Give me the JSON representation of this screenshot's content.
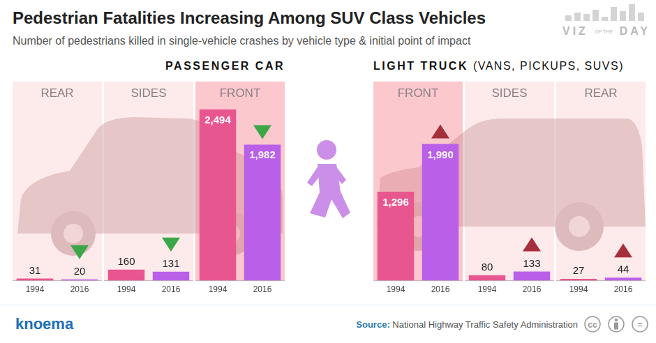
{
  "title": "Pedestrian Fatalities Increasing Among SUV Class Vehicles",
  "subtitle": "Number of pedestrians killed in single-vehicle crashes by vehicle type & initial point of impact",
  "logo": [
    "VIZ",
    "OF THE",
    "DAY"
  ],
  "brand": "knoema",
  "source_label": "Source:",
  "source": "National Highway Traffic Safety Administration",
  "license_icons": [
    "cc",
    "="
  ],
  "chart_data": [
    {
      "type": "bar",
      "group": "PASSENGER CAR",
      "title": "REAR",
      "categories": [
        "1994",
        "2016"
      ],
      "values": [
        31,
        20
      ],
      "value_labels": [
        "31",
        "20"
      ],
      "colors": [
        "#e8568f",
        "#b95fe8"
      ],
      "ylim": [
        0,
        2900
      ],
      "grid": false,
      "tick_labels": "x",
      "data_labels": true,
      "marker": "triangle-down"
    },
    {
      "type": "bar",
      "group": "PASSENGER CAR",
      "title": "SIDES",
      "categories": [
        "1994",
        "2016"
      ],
      "values": [
        160,
        131
      ],
      "value_labels": [
        "160",
        "131"
      ],
      "colors": [
        "#e8568f",
        "#b95fe8"
      ],
      "ylim": [
        0,
        2900
      ],
      "grid": false,
      "tick_labels": "x",
      "data_labels": true,
      "marker": "triangle-down"
    },
    {
      "type": "bar",
      "group": "PASSENGER CAR",
      "title": "FRONT",
      "categories": [
        "1994",
        "2016"
      ],
      "values": [
        2494,
        1982
      ],
      "value_labels": [
        "2,494",
        "1,982"
      ],
      "colors": [
        "#e8568f",
        "#b95fe8"
      ],
      "ylim": [
        0,
        2900
      ],
      "grid": false,
      "tick_labels": "x",
      "data_labels": true,
      "marker": "triangle-down"
    },
    {
      "type": "bar",
      "group": "LIGHT TRUCK (VANS, PICKUPS, SUVS)",
      "title": "FRONT",
      "categories": [
        "1994",
        "2016"
      ],
      "values": [
        1296,
        1990
      ],
      "value_labels": [
        "1,296",
        "1,990"
      ],
      "colors": [
        "#e8568f",
        "#b95fe8"
      ],
      "ylim": [
        0,
        2900
      ],
      "grid": false,
      "tick_labels": "x",
      "data_labels": true,
      "marker": "triangle-up"
    },
    {
      "type": "bar",
      "group": "LIGHT TRUCK (VANS, PICKUPS, SUVS)",
      "title": "SIDES",
      "categories": [
        "1994",
        "2016"
      ],
      "values": [
        80,
        133
      ],
      "value_labels": [
        "80",
        "133"
      ],
      "colors": [
        "#e8568f",
        "#b95fe8"
      ],
      "ylim": [
        0,
        2900
      ],
      "grid": false,
      "tick_labels": "x",
      "data_labels": true,
      "marker": "triangle-up"
    },
    {
      "type": "bar",
      "group": "LIGHT TRUCK (VANS, PICKUPS, SUVS)",
      "title": "REAR",
      "categories": [
        "1994",
        "2016"
      ],
      "values": [
        27,
        44
      ],
      "value_labels": [
        "27",
        "44"
      ],
      "colors": [
        "#e8568f",
        "#b95fe8"
      ],
      "ylim": [
        0,
        2900
      ],
      "grid": false,
      "tick_labels": "x",
      "data_labels": true,
      "marker": "triangle-up"
    }
  ]
}
